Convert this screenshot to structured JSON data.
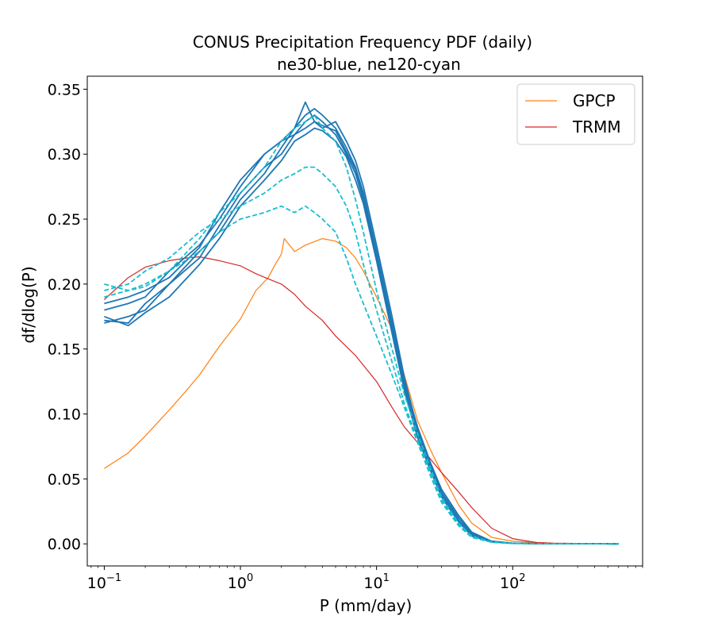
{
  "chart_data": {
    "type": "line",
    "title": "CONUS Precipitation Frequency PDF (daily)",
    "subtitle": "ne30-blue, ne120-cyan",
    "xlabel": "P (mm/day)",
    "ylabel": "df/dlog(P)",
    "xscale": "log",
    "xlim": [
      0.075,
      900
    ],
    "ylim": [
      -0.017,
      0.36
    ],
    "xticks": [
      {
        "value": 0.1,
        "base": "10",
        "exp": "−1"
      },
      {
        "value": 1,
        "base": "10",
        "exp": "0"
      },
      {
        "value": 10,
        "base": "10",
        "exp": "1"
      },
      {
        "value": 100,
        "base": "10",
        "exp": "2"
      }
    ],
    "yticks": [
      {
        "value": 0.0,
        "label": "0.00"
      },
      {
        "value": 0.05,
        "label": "0.05"
      },
      {
        "value": 0.1,
        "label": "0.10"
      },
      {
        "value": 0.15,
        "label": "0.15"
      },
      {
        "value": 0.2,
        "label": "0.20"
      },
      {
        "value": 0.25,
        "label": "0.25"
      },
      {
        "value": 0.3,
        "label": "0.30"
      },
      {
        "value": 0.35,
        "label": "0.35"
      }
    ],
    "legend": {
      "location": "top-right",
      "entries": [
        {
          "label": "GPCP",
          "color": "#ff7f0e"
        },
        {
          "label": "TRMM",
          "color": "#d62728"
        }
      ]
    },
    "series": [
      {
        "name": "GPCP",
        "color": "#ff7f0e",
        "style": "thin",
        "x": [
          0.1,
          0.15,
          0.2,
          0.3,
          0.4,
          0.5,
          0.7,
          1.0,
          1.3,
          1.6,
          1.8,
          2.0,
          2.1,
          2.5,
          3.0,
          4.0,
          5.0,
          6.0,
          7.0,
          8.0,
          10,
          13,
          16,
          20,
          25,
          30,
          40,
          50,
          70,
          100,
          150,
          200,
          600
        ],
        "y": [
          0.058,
          0.07,
          0.083,
          0.103,
          0.118,
          0.13,
          0.152,
          0.173,
          0.195,
          0.205,
          0.215,
          0.223,
          0.235,
          0.225,
          0.23,
          0.235,
          0.233,
          0.228,
          0.22,
          0.21,
          0.19,
          0.165,
          0.13,
          0.095,
          0.072,
          0.055,
          0.03,
          0.016,
          0.005,
          0.002,
          0.001,
          0.0005,
          0.0
        ]
      },
      {
        "name": "TRMM",
        "color": "#d62728",
        "style": "thin",
        "x": [
          0.1,
          0.15,
          0.2,
          0.3,
          0.4,
          0.5,
          0.7,
          1.0,
          1.3,
          1.6,
          2.0,
          2.5,
          3.0,
          4.0,
          5.0,
          7.0,
          10,
          13,
          16,
          20,
          25,
          30,
          40,
          50,
          70,
          100,
          150,
          200,
          600
        ],
        "y": [
          0.188,
          0.205,
          0.213,
          0.218,
          0.22,
          0.221,
          0.218,
          0.214,
          0.208,
          0.204,
          0.2,
          0.192,
          0.183,
          0.172,
          0.16,
          0.145,
          0.125,
          0.105,
          0.09,
          0.078,
          0.065,
          0.055,
          0.04,
          0.028,
          0.012,
          0.004,
          0.001,
          0.0005,
          0.0
        ]
      },
      {
        "name": "ne30 run 1",
        "color": "#1f77b4",
        "style": "solid",
        "x": [
          0.1,
          0.15,
          0.2,
          0.3,
          0.5,
          0.7,
          1.0,
          1.5,
          2.0,
          2.5,
          3.0,
          3.5,
          4.0,
          5.0,
          6.0,
          7.0,
          8.0,
          10,
          13,
          16,
          20,
          25,
          30,
          40,
          50,
          70,
          100,
          150,
          600
        ],
        "y": [
          0.17,
          0.175,
          0.18,
          0.2,
          0.22,
          0.245,
          0.27,
          0.29,
          0.3,
          0.315,
          0.325,
          0.33,
          0.325,
          0.315,
          0.3,
          0.285,
          0.265,
          0.22,
          0.165,
          0.12,
          0.085,
          0.06,
          0.04,
          0.02,
          0.008,
          0.002,
          0.0005,
          0.0002,
          0.0
        ]
      },
      {
        "name": "ne30 run 2",
        "color": "#1f77b4",
        "style": "solid",
        "x": [
          0.1,
          0.15,
          0.2,
          0.3,
          0.5,
          0.7,
          1.0,
          1.5,
          2.0,
          2.5,
          3.0,
          3.5,
          4.0,
          5.0,
          6.0,
          7.0,
          8.0,
          10,
          13,
          16,
          20,
          25,
          30,
          40,
          50,
          70,
          100,
          150,
          600
        ],
        "y": [
          0.18,
          0.185,
          0.19,
          0.21,
          0.23,
          0.25,
          0.275,
          0.3,
          0.31,
          0.32,
          0.33,
          0.335,
          0.33,
          0.32,
          0.305,
          0.29,
          0.27,
          0.225,
          0.17,
          0.125,
          0.09,
          0.062,
          0.042,
          0.022,
          0.009,
          0.002,
          0.0005,
          0.0002,
          0.0
        ]
      },
      {
        "name": "ne30 run 3",
        "color": "#1f77b4",
        "style": "solid",
        "x": [
          0.1,
          0.15,
          0.2,
          0.3,
          0.5,
          0.7,
          1.0,
          1.5,
          2.0,
          2.5,
          3.0,
          3.5,
          4.0,
          5.0,
          6.0,
          7.0,
          8.0,
          10,
          13,
          16,
          20,
          25,
          30,
          40,
          50,
          70,
          100,
          150,
          600
        ],
        "y": [
          0.172,
          0.17,
          0.185,
          0.2,
          0.225,
          0.24,
          0.265,
          0.285,
          0.305,
          0.32,
          0.34,
          0.325,
          0.32,
          0.325,
          0.31,
          0.295,
          0.275,
          0.23,
          0.175,
          0.128,
          0.088,
          0.06,
          0.038,
          0.018,
          0.007,
          0.002,
          0.0005,
          0.0002,
          0.0
        ]
      },
      {
        "name": "ne30 run 4",
        "color": "#1f77b4",
        "style": "solid",
        "x": [
          0.1,
          0.15,
          0.2,
          0.3,
          0.5,
          0.7,
          1.0,
          1.5,
          2.0,
          2.5,
          3.0,
          3.5,
          4.0,
          5.0,
          6.0,
          7.0,
          8.0,
          10,
          13,
          16,
          20,
          25,
          30,
          40,
          50,
          70,
          100,
          150,
          600
        ],
        "y": [
          0.175,
          0.168,
          0.178,
          0.19,
          0.215,
          0.235,
          0.26,
          0.28,
          0.295,
          0.31,
          0.315,
          0.32,
          0.318,
          0.31,
          0.298,
          0.28,
          0.262,
          0.218,
          0.162,
          0.118,
          0.082,
          0.056,
          0.036,
          0.017,
          0.006,
          0.0015,
          0.0004,
          0.0002,
          0.0
        ]
      },
      {
        "name": "ne30 run 5",
        "color": "#1f77b4",
        "style": "solid",
        "x": [
          0.1,
          0.15,
          0.2,
          0.3,
          0.5,
          0.7,
          1.0,
          1.5,
          2.0,
          2.5,
          3.0,
          3.5,
          4.0,
          5.0,
          6.0,
          7.0,
          8.0,
          10,
          13,
          16,
          20,
          25,
          30,
          40,
          50,
          70,
          100,
          150,
          600
        ],
        "y": [
          0.185,
          0.19,
          0.195,
          0.205,
          0.228,
          0.255,
          0.28,
          0.3,
          0.31,
          0.315,
          0.32,
          0.325,
          0.322,
          0.318,
          0.302,
          0.288,
          0.268,
          0.222,
          0.168,
          0.122,
          0.086,
          0.058,
          0.038,
          0.018,
          0.007,
          0.002,
          0.0005,
          0.0002,
          0.0
        ]
      },
      {
        "name": "ne120 run 1",
        "color": "#17becf",
        "style": "dashed",
        "x": [
          0.1,
          0.15,
          0.2,
          0.3,
          0.5,
          0.7,
          1.0,
          1.5,
          2.0,
          2.5,
          3.0,
          3.5,
          4.0,
          5.0,
          6.0,
          7.0,
          8.0,
          10,
          13,
          16,
          20,
          25,
          30,
          40,
          50,
          70,
          100,
          150,
          600
        ],
        "y": [
          0.2,
          0.195,
          0.198,
          0.21,
          0.235,
          0.255,
          0.27,
          0.29,
          0.31,
          0.32,
          0.325,
          0.33,
          0.32,
          0.31,
          0.29,
          0.265,
          0.24,
          0.195,
          0.15,
          0.115,
          0.085,
          0.058,
          0.036,
          0.016,
          0.006,
          0.0015,
          0.0004,
          0.0002,
          0.0
        ]
      },
      {
        "name": "ne120 run 2",
        "color": "#17becf",
        "style": "dashed",
        "x": [
          0.1,
          0.15,
          0.2,
          0.3,
          0.5,
          0.7,
          1.0,
          1.5,
          2.0,
          2.5,
          3.0,
          3.5,
          4.0,
          5.0,
          6.0,
          7.0,
          8.0,
          10,
          13,
          16,
          20,
          25,
          30,
          40,
          50,
          70,
          100,
          150,
          600
        ],
        "y": [
          0.195,
          0.2,
          0.21,
          0.22,
          0.24,
          0.25,
          0.26,
          0.27,
          0.28,
          0.285,
          0.29,
          0.29,
          0.285,
          0.275,
          0.26,
          0.24,
          0.215,
          0.18,
          0.14,
          0.108,
          0.08,
          0.055,
          0.034,
          0.015,
          0.006,
          0.0015,
          0.0004,
          0.0002,
          0.0
        ]
      },
      {
        "name": "ne120 run 3",
        "color": "#17becf",
        "style": "dashed",
        "x": [
          0.1,
          0.15,
          0.2,
          0.3,
          0.5,
          0.7,
          1.0,
          1.5,
          2.0,
          2.5,
          3.0,
          3.5,
          4.0,
          5.0,
          6.0,
          7.0,
          8.0,
          10,
          13,
          16,
          20,
          25,
          30,
          40,
          50,
          70,
          100,
          150,
          600
        ],
        "y": [
          0.19,
          0.195,
          0.2,
          0.21,
          0.225,
          0.24,
          0.25,
          0.255,
          0.26,
          0.255,
          0.26,
          0.255,
          0.25,
          0.24,
          0.22,
          0.2,
          0.185,
          0.16,
          0.13,
          0.105,
          0.078,
          0.052,
          0.032,
          0.014,
          0.005,
          0.0012,
          0.0003,
          0.0001,
          0.0
        ]
      }
    ]
  }
}
